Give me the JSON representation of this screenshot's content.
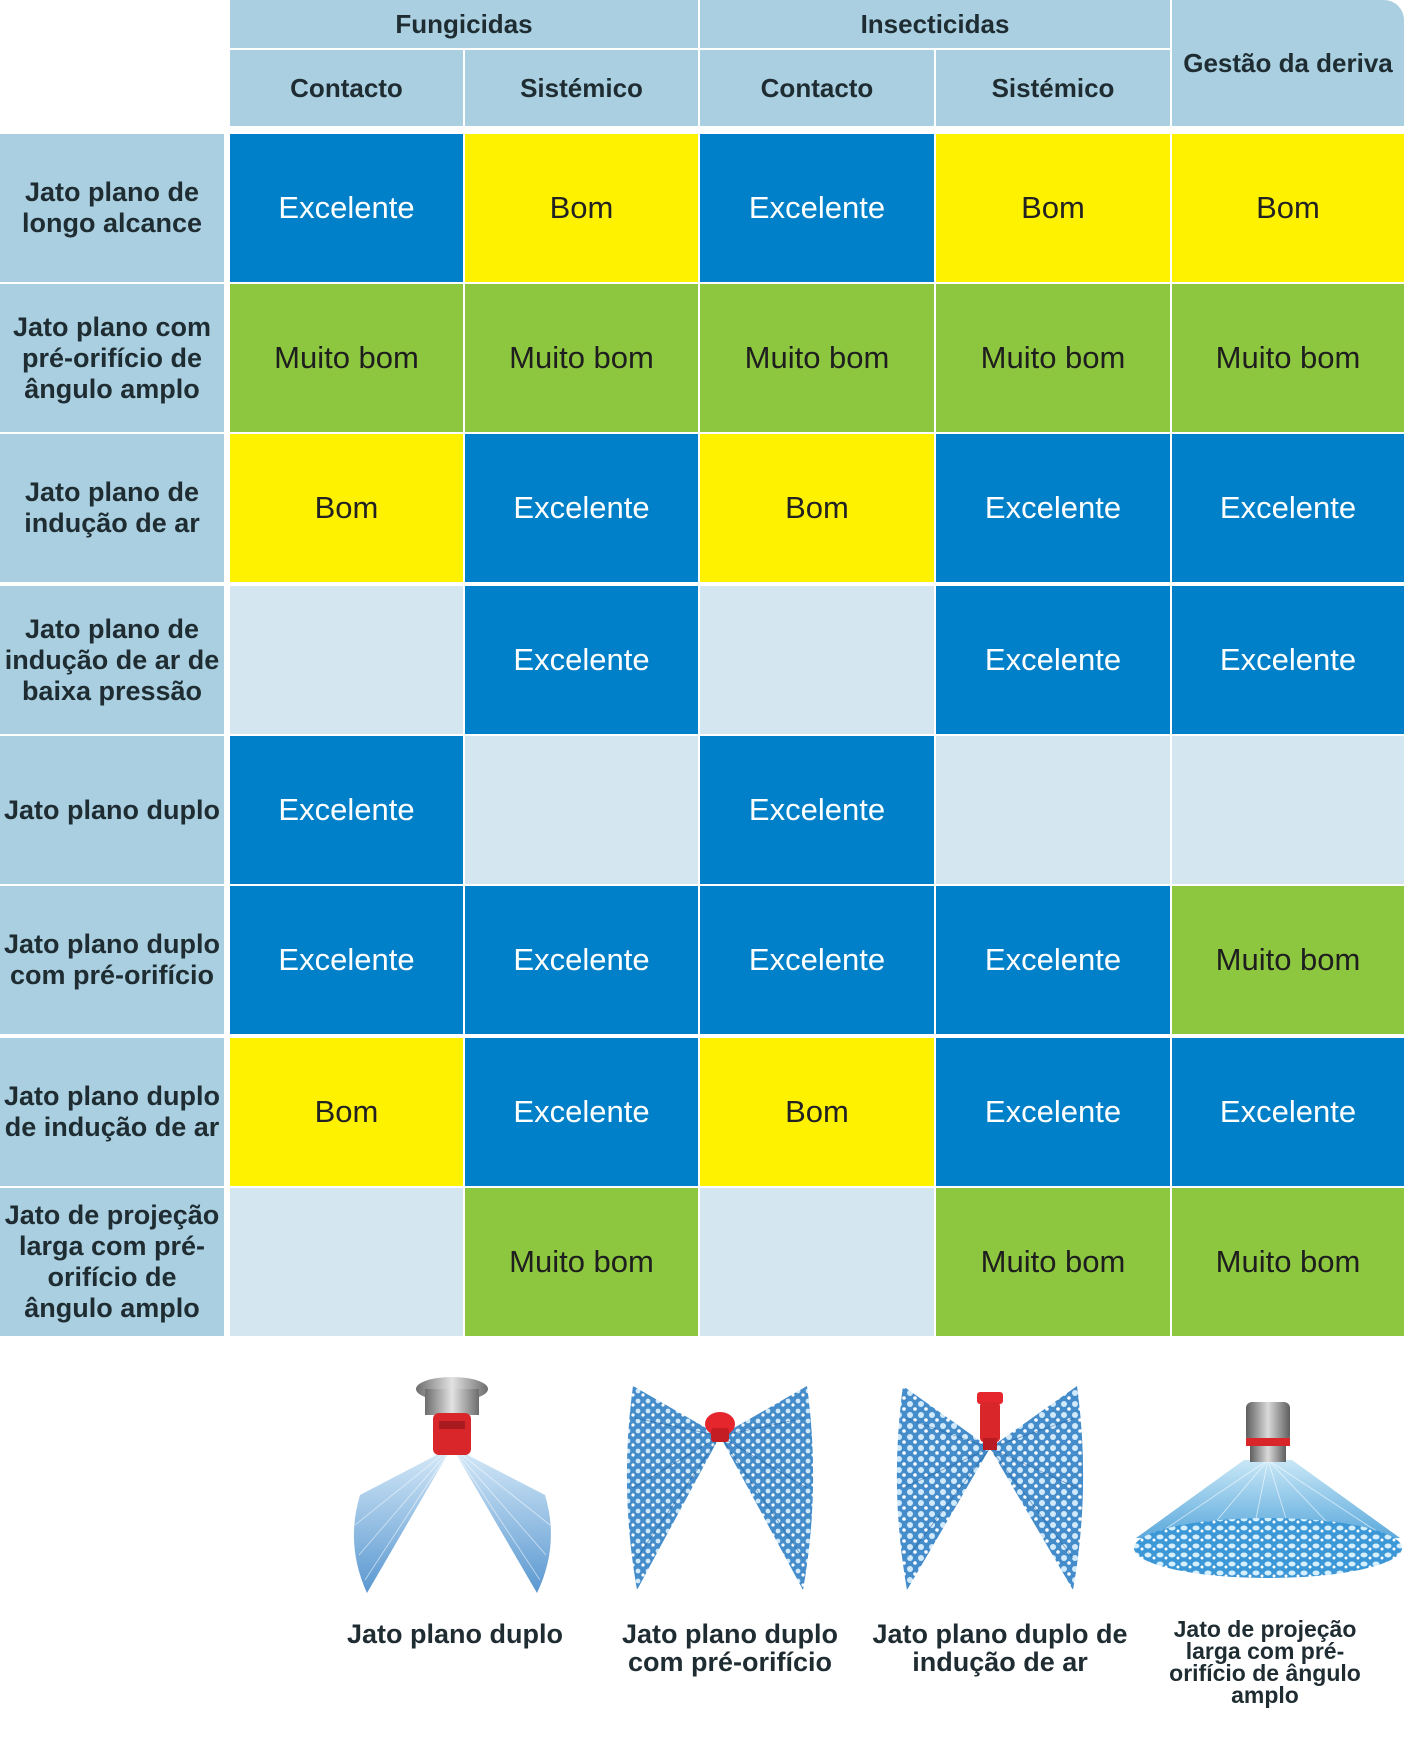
{
  "header": {
    "groups": [
      "Fungicidas",
      "Insecticidas"
    ],
    "subcolumns": [
      "Contacto",
      "Sistémico",
      "Contacto",
      "Sistémico"
    ],
    "drift": "Gestão da deriva"
  },
  "rows": [
    {
      "label": "Jato plano de longo alcance",
      "cells": [
        "Excelente",
        "Bom",
        "Excelente",
        "Bom",
        "Bom"
      ]
    },
    {
      "label": "Jato plano com pré-orifício de ângulo amplo",
      "cells": [
        "Muito bom",
        "Muito bom",
        "Muito bom",
        "Muito bom",
        "Muito bom"
      ]
    },
    {
      "label": "Jato plano de indução de ar",
      "cells": [
        "Bom",
        "Excelente",
        "Bom",
        "Excelente",
        "Excelente"
      ]
    },
    {
      "label": "Jato plano de indução de ar de baixa pressão",
      "cells": [
        "",
        "Excelente",
        "",
        "Excelente",
        "Excelente"
      ]
    },
    {
      "label": "Jato plano duplo",
      "cells": [
        "Excelente",
        "",
        "Excelente",
        "",
        ""
      ]
    },
    {
      "label": "Jato plano duplo com pré-orifício",
      "cells": [
        "Excelente",
        "Excelente",
        "Excelente",
        "Excelente",
        "Muito bom"
      ]
    },
    {
      "label": "Jato plano duplo de indução de ar",
      "cells": [
        "Bom",
        "Excelente",
        "Bom",
        "Excelente",
        "Excelente"
      ]
    },
    {
      "label": "Jato de projeção larga com pré-orifício de ângulo amplo",
      "cells": [
        "",
        "Muito bom",
        "",
        "Muito bom",
        "Muito bom"
      ]
    }
  ],
  "nozzles": [
    {
      "caption": "Jato plano duplo",
      "icon": "twin-flat-nozzle-icon"
    },
    {
      "caption": "Jato plano duplo com pré-orifício",
      "icon": "twin-flat-preorifice-nozzle-icon"
    },
    {
      "caption": "Jato plano duplo de indução de ar",
      "icon": "twin-flat-air-induction-nozzle-icon"
    },
    {
      "caption": "Jato de projeção larga com pré-orifício de ângulo amplo",
      "icon": "wide-angle-preorifice-nozzle-icon"
    }
  ],
  "colors": {
    "excelente": "#0080c8",
    "bom": "#fff200",
    "muito_bom": "#8dc63f",
    "empty": "#d4e7f0",
    "header": "#a9cfe0"
  }
}
